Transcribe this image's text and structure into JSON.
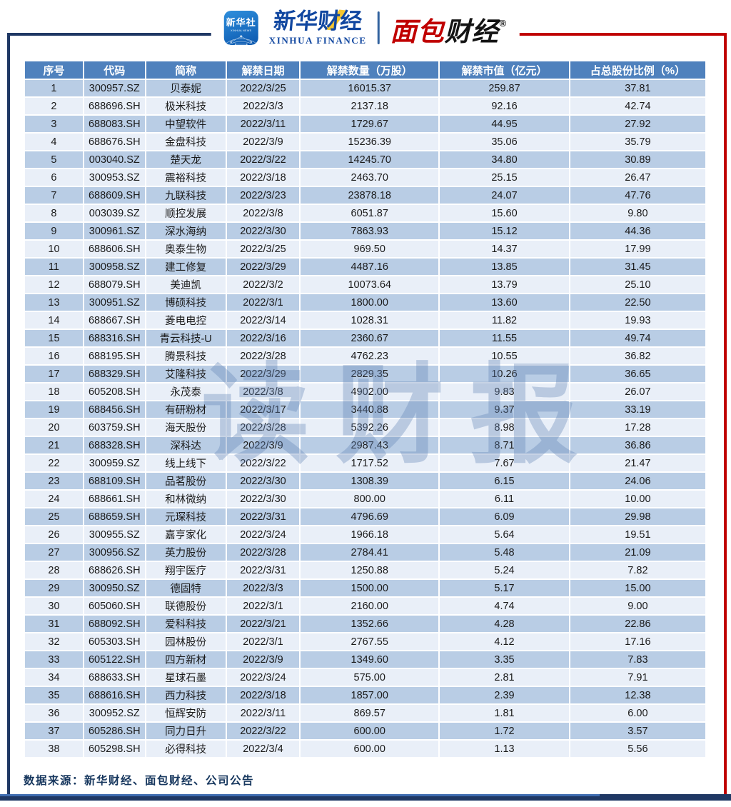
{
  "header": {
    "xinhua_icon": {
      "line1": "新华社",
      "line2": "XINHUA NEWS"
    },
    "xinhua_finance": {
      "cn": "新华财经",
      "en": "XINHUA FINANCE"
    },
    "mianbao": {
      "cn_red": "面包",
      "cn_black": "财经",
      "reg": "®"
    }
  },
  "watermark": "读财报",
  "colors": {
    "header_bg": "#4F81BD",
    "row_odd": "#B9CDE5",
    "row_even": "#E9EFF8",
    "frame_blue": "#1F3864",
    "frame_red": "#C00000",
    "source_text": "#17375E"
  },
  "chart_data": {
    "type": "table",
    "columns": [
      "序号",
      "代码",
      "简称",
      "解禁日期",
      "解禁数量（万股）",
      "解禁市值（亿元）",
      "占总股份比例（%）"
    ],
    "rows": [
      [
        "1",
        "300957.SZ",
        "贝泰妮",
        "2022/3/25",
        "16015.37",
        "259.87",
        "37.81"
      ],
      [
        "2",
        "688696.SH",
        "极米科技",
        "2022/3/3",
        "2137.18",
        "92.16",
        "42.74"
      ],
      [
        "3",
        "688083.SH",
        "中望软件",
        "2022/3/11",
        "1729.67",
        "44.95",
        "27.92"
      ],
      [
        "4",
        "688676.SH",
        "金盘科技",
        "2022/3/9",
        "15236.39",
        "35.06",
        "35.79"
      ],
      [
        "5",
        "003040.SZ",
        "楚天龙",
        "2022/3/22",
        "14245.70",
        "34.80",
        "30.89"
      ],
      [
        "6",
        "300953.SZ",
        "震裕科技",
        "2022/3/18",
        "2463.70",
        "25.15",
        "26.47"
      ],
      [
        "7",
        "688609.SH",
        "九联科技",
        "2022/3/23",
        "23878.18",
        "24.07",
        "47.76"
      ],
      [
        "8",
        "003039.SZ",
        "顺控发展",
        "2022/3/8",
        "6051.87",
        "15.60",
        "9.80"
      ],
      [
        "9",
        "300961.SZ",
        "深水海纳",
        "2022/3/30",
        "7863.93",
        "15.12",
        "44.36"
      ],
      [
        "10",
        "688606.SH",
        "奥泰生物",
        "2022/3/25",
        "969.50",
        "14.37",
        "17.99"
      ],
      [
        "11",
        "300958.SZ",
        "建工修复",
        "2022/3/29",
        "4487.16",
        "13.85",
        "31.45"
      ],
      [
        "12",
        "688079.SH",
        "美迪凯",
        "2022/3/2",
        "10073.64",
        "13.79",
        "25.10"
      ],
      [
        "13",
        "300951.SZ",
        "博硕科技",
        "2022/3/1",
        "1800.00",
        "13.60",
        "22.50"
      ],
      [
        "14",
        "688667.SH",
        "菱电电控",
        "2022/3/14",
        "1028.31",
        "11.82",
        "19.93"
      ],
      [
        "15",
        "688316.SH",
        "青云科技-U",
        "2022/3/16",
        "2360.67",
        "11.55",
        "49.74"
      ],
      [
        "16",
        "688195.SH",
        "腾景科技",
        "2022/3/28",
        "4762.23",
        "10.55",
        "36.82"
      ],
      [
        "17",
        "688329.SH",
        "艾隆科技",
        "2022/3/29",
        "2829.35",
        "10.26",
        "36.65"
      ],
      [
        "18",
        "605208.SH",
        "永茂泰",
        "2022/3/8",
        "4902.00",
        "9.83",
        "26.07"
      ],
      [
        "19",
        "688456.SH",
        "有研粉材",
        "2022/3/17",
        "3440.88",
        "9.37",
        "33.19"
      ],
      [
        "20",
        "603759.SH",
        "海天股份",
        "2022/3/28",
        "5392.26",
        "8.98",
        "17.28"
      ],
      [
        "21",
        "688328.SH",
        "深科达",
        "2022/3/9",
        "2987.43",
        "8.71",
        "36.86"
      ],
      [
        "22",
        "300959.SZ",
        "线上线下",
        "2022/3/22",
        "1717.52",
        "7.67",
        "21.47"
      ],
      [
        "23",
        "688109.SH",
        "品茗股份",
        "2022/3/30",
        "1308.39",
        "6.15",
        "24.06"
      ],
      [
        "24",
        "688661.SH",
        "和林微纳",
        "2022/3/30",
        "800.00",
        "6.11",
        "10.00"
      ],
      [
        "25",
        "688659.SH",
        "元琛科技",
        "2022/3/31",
        "4796.69",
        "6.09",
        "29.98"
      ],
      [
        "26",
        "300955.SZ",
        "嘉亨家化",
        "2022/3/24",
        "1966.18",
        "5.64",
        "19.51"
      ],
      [
        "27",
        "300956.SZ",
        "英力股份",
        "2022/3/28",
        "2784.41",
        "5.48",
        "21.09"
      ],
      [
        "28",
        "688626.SH",
        "翔宇医疗",
        "2022/3/31",
        "1250.88",
        "5.24",
        "7.82"
      ],
      [
        "29",
        "300950.SZ",
        "德固特",
        "2022/3/3",
        "1500.00",
        "5.17",
        "15.00"
      ],
      [
        "30",
        "605060.SH",
        "联德股份",
        "2022/3/1",
        "2160.00",
        "4.74",
        "9.00"
      ],
      [
        "31",
        "688092.SH",
        "爱科科技",
        "2022/3/21",
        "1352.66",
        "4.28",
        "22.86"
      ],
      [
        "32",
        "605303.SH",
        "园林股份",
        "2022/3/1",
        "2767.55",
        "4.12",
        "17.16"
      ],
      [
        "33",
        "605122.SH",
        "四方新材",
        "2022/3/9",
        "1349.60",
        "3.35",
        "7.83"
      ],
      [
        "34",
        "688633.SH",
        "星球石墨",
        "2022/3/24",
        "575.00",
        "2.81",
        "7.91"
      ],
      [
        "35",
        "688616.SH",
        "西力科技",
        "2022/3/18",
        "1857.00",
        "2.39",
        "12.38"
      ],
      [
        "36",
        "300952.SZ",
        "恒辉安防",
        "2022/3/11",
        "869.57",
        "1.81",
        "6.00"
      ],
      [
        "37",
        "605286.SH",
        "同力日升",
        "2022/3/22",
        "600.00",
        "1.72",
        "3.57"
      ],
      [
        "38",
        "605298.SH",
        "必得科技",
        "2022/3/4",
        "600.00",
        "1.13",
        "5.56"
      ]
    ]
  },
  "footer": {
    "source": "数据来源：新华财经、面包财经、公司公告"
  }
}
